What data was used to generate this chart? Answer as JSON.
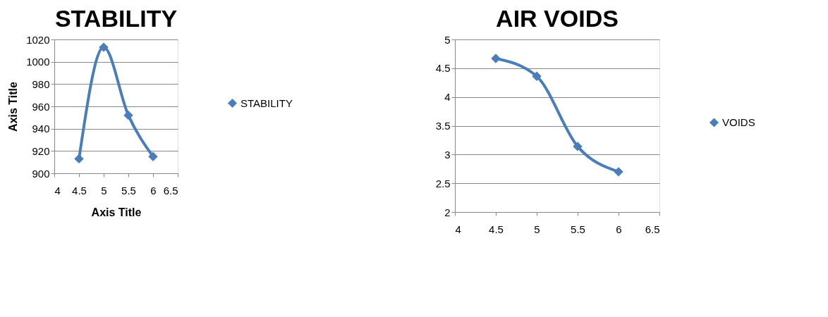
{
  "chart_data": [
    {
      "type": "line",
      "title": "STABILITY",
      "xlabel": "Axis Title",
      "ylabel": "Axis Title",
      "x": [
        4.5,
        5,
        5.5,
        6
      ],
      "series": [
        {
          "name": "STABILITY",
          "color": "#4a7ebb",
          "values": [
            913,
            1013,
            952,
            915
          ]
        }
      ],
      "xlim": [
        4,
        6.5
      ],
      "xticks": [
        4,
        4.5,
        5,
        5.5,
        6,
        6.5
      ],
      "ylim": [
        900,
        1020
      ],
      "yticks": [
        900,
        920,
        940,
        960,
        980,
        1000,
        1020
      ],
      "grid": "y",
      "legend": "right",
      "marker": "diamond",
      "line_style": "solid"
    },
    {
      "type": "line",
      "title": "AIR VOIDS",
      "x": [
        4.5,
        5,
        5.5,
        6
      ],
      "series": [
        {
          "name": "VOIDS",
          "color": "#4a7ebb",
          "values": [
            4.67,
            4.36,
            3.14,
            2.7
          ]
        }
      ],
      "xlim": [
        4,
        6.5
      ],
      "xticks": [
        4,
        4.5,
        5,
        5.5,
        6,
        6.5
      ],
      "ylim": [
        2,
        5
      ],
      "yticks": [
        2,
        2.5,
        3,
        3.5,
        4,
        4.5,
        5
      ],
      "grid": "y",
      "legend": "right",
      "marker": "diamond",
      "line_style": "solid"
    }
  ]
}
